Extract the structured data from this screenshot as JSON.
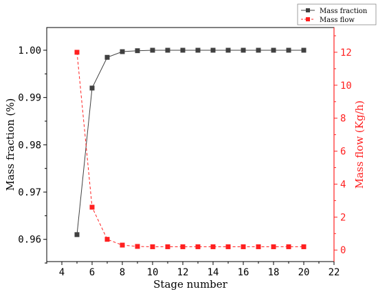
{
  "chart_data": {
    "type": "line",
    "xlabel": "Stage number",
    "ylabel_left": "Mass fraction (%)",
    "ylabel_right": "Mass flow (Kg/h)",
    "xlim": [
      3,
      22
    ],
    "ylim_left": [
      0.9553,
      1.0048
    ],
    "ylim_right": [
      -0.7,
      13.5
    ],
    "x_ticks": [
      4,
      6,
      8,
      10,
      12,
      14,
      16,
      18,
      20,
      22
    ],
    "y_left_ticks": [
      0.96,
      0.97,
      0.98,
      0.99,
      1.0
    ],
    "y_left_tick_labels": [
      "0.96",
      "0.97",
      "0.98",
      "0.99",
      "1.00"
    ],
    "y_right_ticks": [
      0,
      2,
      4,
      6,
      8,
      10,
      12
    ],
    "x": [
      5,
      6,
      7,
      8,
      9,
      10,
      11,
      12,
      13,
      14,
      15,
      16,
      17,
      18,
      19,
      20
    ],
    "legend_position": "top-right",
    "series": [
      {
        "name": "Mass fraction",
        "axis": "left",
        "color": "#404040",
        "line_style": "solid",
        "values": [
          0.961,
          0.992,
          0.9985,
          0.9997,
          0.9999,
          1.0,
          1.0,
          1.0,
          1.0,
          1.0,
          1.0,
          1.0,
          1.0,
          1.0,
          1.0,
          1.0
        ]
      },
      {
        "name": "Mass flow",
        "axis": "right",
        "color": "#ff2020",
        "line_style": "dashed",
        "values": [
          12.0,
          2.6,
          0.65,
          0.3,
          0.22,
          0.2,
          0.2,
          0.2,
          0.2,
          0.2,
          0.2,
          0.2,
          0.2,
          0.2,
          0.2,
          0.2
        ]
      }
    ]
  }
}
